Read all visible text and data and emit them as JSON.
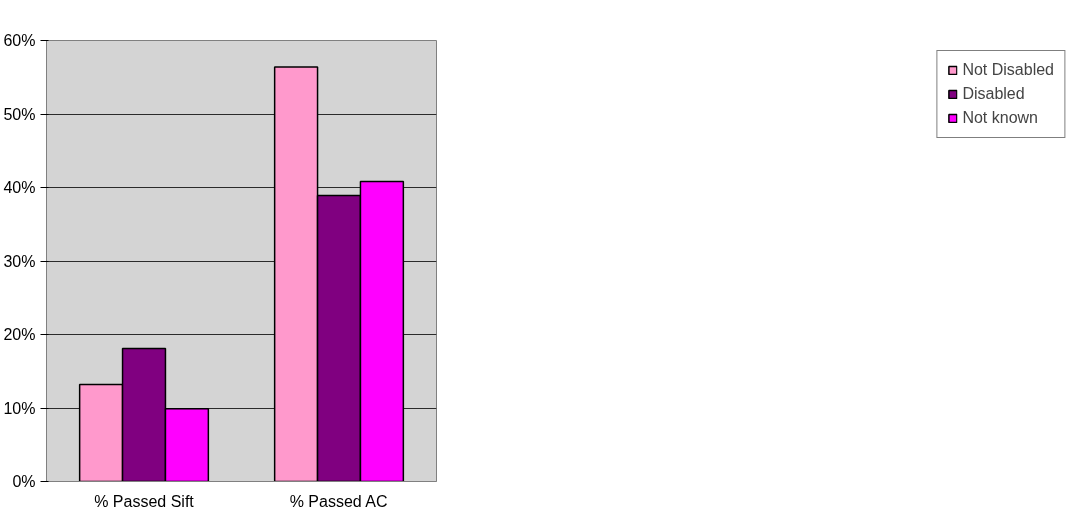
{
  "chart_data": {
    "type": "bar",
    "categories": [
      "% Passed Sift",
      "% Passed AC"
    ],
    "series": [
      {
        "name": "Not Disabled",
        "color": "#ff99cc",
        "values": [
          13.2,
          56.4
        ]
      },
      {
        "name": "Disabled",
        "color": "#800080",
        "values": [
          18.1,
          38.9
        ]
      },
      {
        "name": "Not known",
        "color": "#ff00ff",
        "values": [
          9.9,
          40.8
        ]
      }
    ],
    "ylim": [
      0,
      60
    ],
    "yticks": [
      {
        "value": 0,
        "label": "0%"
      },
      {
        "value": 10,
        "label": "10%"
      },
      {
        "value": 20,
        "label": "20%"
      },
      {
        "value": 30,
        "label": "30%"
      },
      {
        "value": 40,
        "label": "40%"
      },
      {
        "value": 50,
        "label": "50%"
      },
      {
        "value": 60,
        "label": "60%"
      }
    ],
    "grid": "y",
    "legend": "right"
  }
}
